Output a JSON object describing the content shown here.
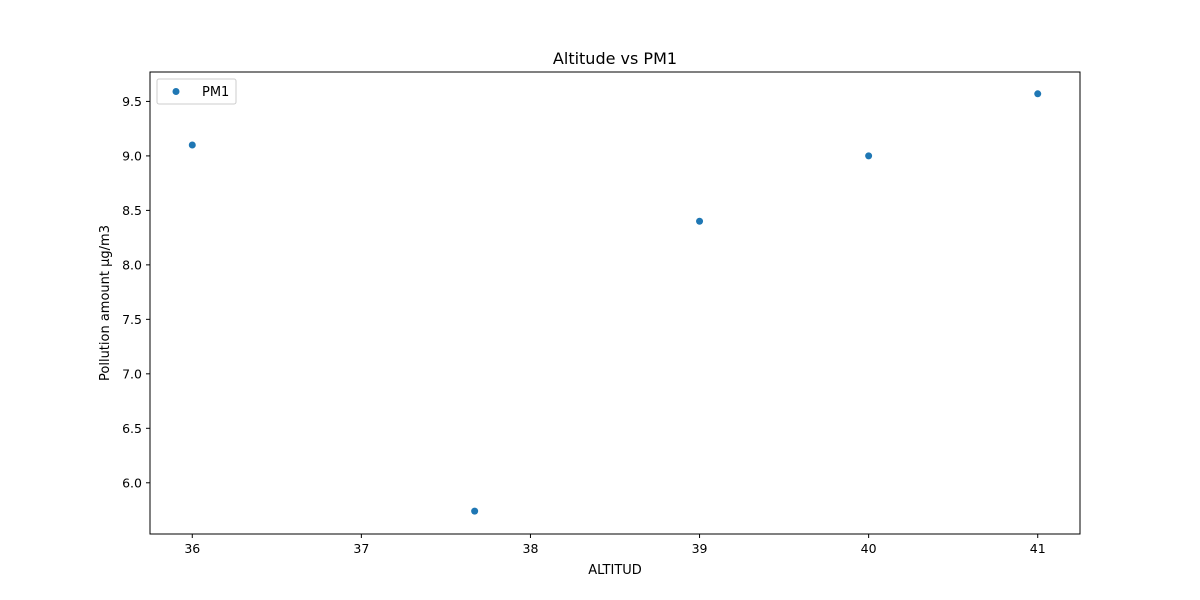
{
  "chart_data": {
    "type": "scatter",
    "title": "Altitude vs PM1",
    "xlabel": "ALTITUD",
    "ylabel": "Pollution amount µg/m3",
    "xlim": [
      35.75,
      41.25
    ],
    "ylim": [
      5.53,
      9.77
    ],
    "xticks": [
      "36",
      "37",
      "38",
      "39",
      "40",
      "41"
    ],
    "yticks": [
      "6.0",
      "6.5",
      "7.0",
      "7.5",
      "8.0",
      "8.5",
      "9.0",
      "9.5"
    ],
    "grid": false,
    "legend_position": "upper-left",
    "series": [
      {
        "name": "PM1",
        "color": "#1f77b4",
        "marker": "circle",
        "points": [
          {
            "x": 36.0,
            "y": 9.1
          },
          {
            "x": 37.67,
            "y": 5.74
          },
          {
            "x": 39.0,
            "y": 8.4
          },
          {
            "x": 40.0,
            "y": 9.0
          },
          {
            "x": 41.0,
            "y": 9.57
          }
        ]
      }
    ]
  }
}
